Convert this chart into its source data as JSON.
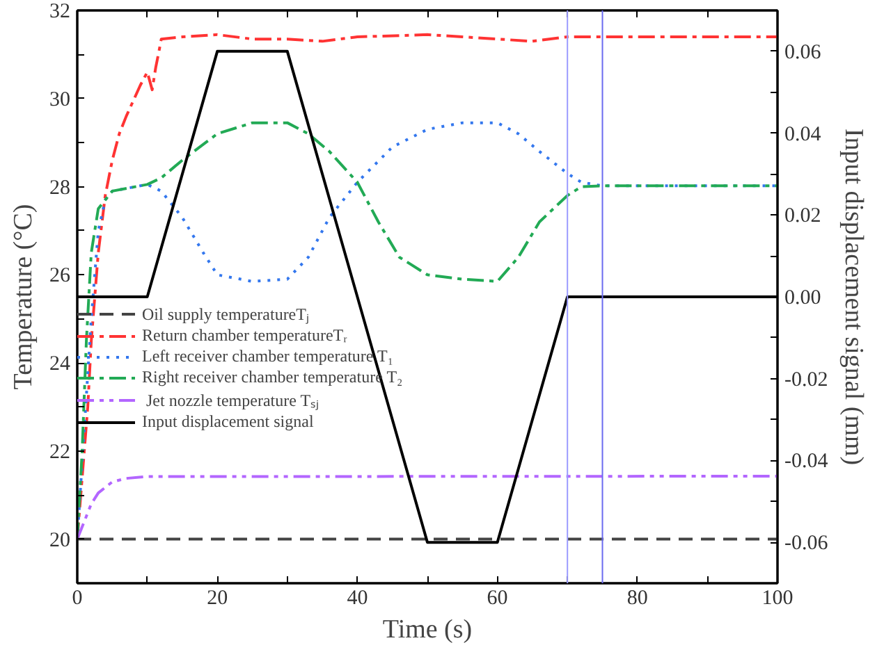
{
  "chart_data": {
    "type": "line",
    "xlabel": "Time (s)",
    "ylabel": "Temperature (°C)",
    "y2label": "Input displacement signal (mm)",
    "xlim": [
      0,
      100
    ],
    "ylim": [
      19,
      32
    ],
    "y2lim": [
      -0.07,
      0.07
    ],
    "xticks": [
      0,
      {
        "value": 10,
        "label": null
      },
      20,
      {
        "value": 30,
        "label": null
      },
      40,
      {
        "value": 50,
        "label": null
      },
      60,
      {
        "value": 70,
        "label": null
      },
      80,
      {
        "value": 90,
        "label": null
      },
      100
    ],
    "yticks": [
      {
        "value": 19,
        "label": null
      },
      20,
      {
        "value": 21,
        "label": null
      },
      22,
      {
        "value": 23,
        "label": null
      },
      24,
      {
        "value": 25,
        "label": null
      },
      26,
      {
        "value": 27,
        "label": null
      },
      28,
      {
        "value": 29,
        "label": null
      },
      30,
      {
        "value": 31,
        "label": null
      },
      32
    ],
    "y2ticks": [
      -0.06,
      {
        "value": -0.05,
        "label": null
      },
      -0.04,
      {
        "value": -0.03,
        "label": null
      },
      -0.02,
      {
        "value": -0.01,
        "label": null
      },
      {
        "value": 0.0,
        "label": "0.00"
      },
      {
        "value": 0.01,
        "label": null
      },
      0.02,
      {
        "value": 0.03,
        "label": null
      },
      0.04,
      {
        "value": 0.05,
        "label": null
      },
      0.06
    ],
    "grid": false,
    "legend": "left",
    "marker": "none",
    "ref_lines": [
      {
        "axis": "x",
        "value": 70,
        "label": null,
        "color": "#9a9aff",
        "line_style": "solid"
      },
      {
        "axis": "x",
        "value": 75,
        "label": null,
        "color": "#6b6bf0",
        "line_style": "solid"
      }
    ],
    "series": [
      {
        "name": "Oil supply temperatureTⱼ",
        "color": "#444444",
        "line_style": "dashed",
        "x": [
          0,
          100
        ],
        "values": [
          20,
          20
        ]
      },
      {
        "name": "Return chamber temperatureTᵣ",
        "color": "#ff3333",
        "line_style": "dashdot",
        "x": [
          0,
          0.5,
          1,
          1.5,
          2,
          3,
          4,
          5,
          6,
          7,
          8,
          9,
          10,
          10.7,
          11.2,
          11.7,
          12,
          15,
          20,
          25,
          30,
          35,
          40,
          50,
          55,
          60,
          65,
          70,
          80,
          90,
          100
        ],
        "values": [
          20,
          21,
          22,
          23,
          24.5,
          26.5,
          27.8,
          28.6,
          29.2,
          29.6,
          29.95,
          30.3,
          30.6,
          30.2,
          30.7,
          31.1,
          31.35,
          31.4,
          31.45,
          31.35,
          31.35,
          31.3,
          31.4,
          31.45,
          31.4,
          31.35,
          31.3,
          31.4,
          31.4,
          31.4,
          31.4
        ]
      },
      {
        "name": "Left receiver chamber temperature T₁",
        "color": "#3377ee",
        "line_style": "dotted",
        "x": [
          0,
          1,
          2,
          3,
          4,
          5,
          10,
          12,
          15,
          18,
          20,
          25,
          30,
          33,
          36,
          40,
          45,
          50,
          55,
          60,
          63,
          66,
          70,
          72,
          75,
          100
        ],
        "values": [
          20,
          22.5,
          25,
          27,
          27.7,
          27.9,
          28.05,
          27.9,
          27.3,
          26.5,
          26.0,
          25.85,
          25.9,
          26.4,
          27.3,
          28.1,
          28.9,
          29.3,
          29.45,
          29.45,
          29.2,
          28.8,
          28.3,
          28.1,
          28.02,
          28.02
        ]
      },
      {
        "name": "Right receiver chamber temperature T₂",
        "color": "#22aa55",
        "line_style": "dashdot",
        "x": [
          0,
          0.7,
          1.3,
          2,
          3,
          5,
          10,
          12,
          15,
          20,
          25,
          30,
          33,
          36,
          40,
          43,
          46,
          50,
          55,
          60,
          63,
          66,
          70,
          72,
          75,
          100
        ],
        "values": [
          20,
          22,
          24.5,
          26.5,
          27.5,
          27.9,
          28.05,
          28.2,
          28.6,
          29.2,
          29.45,
          29.45,
          29.2,
          28.8,
          28.1,
          27.2,
          26.4,
          26.0,
          25.9,
          25.85,
          26.4,
          27.2,
          27.8,
          28.0,
          28.02,
          28.02
        ]
      },
      {
        "name": " Jet nozzle temperature Tₛⱼ",
        "color": "#b366ff",
        "line_style": "dashdotdot",
        "x": [
          0,
          1,
          2,
          3,
          5,
          7,
          10,
          100
        ],
        "values": [
          20,
          20.4,
          20.8,
          21.05,
          21.3,
          21.38,
          21.42,
          21.43
        ]
      },
      {
        "name": "Input displacement signal",
        "color": "#000000",
        "line_style": "solid",
        "axis": "y2",
        "x": [
          0,
          10,
          20,
          30,
          50,
          60,
          70,
          100
        ],
        "values": [
          0,
          0,
          0.06,
          0.06,
          -0.06,
          -0.06,
          0,
          0
        ]
      }
    ]
  }
}
